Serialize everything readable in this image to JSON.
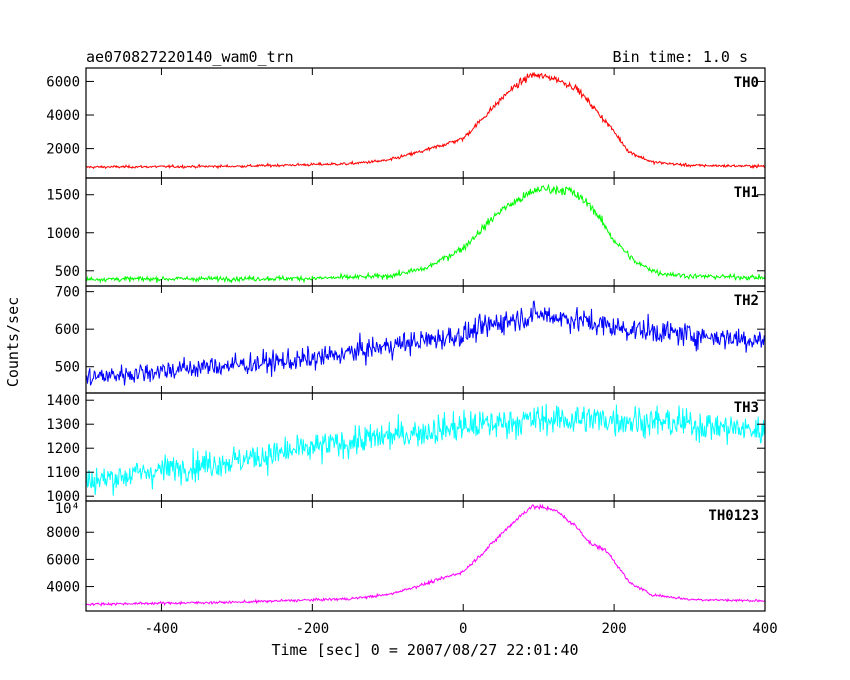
{
  "header": {
    "title": "ae070827220140_wam0_trn",
    "bin_time": "Bin time: 1.0 s"
  },
  "axes": {
    "xlabel": "Time [sec] 0 = 2007/08/27 22:01:40",
    "ylabel": "Counts/sec"
  },
  "chart_data": {
    "type": "line",
    "title": "ae070827220140_wam0_trn",
    "xlabel": "Time [sec] 0 = 2007/08/27 22:01:40",
    "ylabel": "Counts/sec",
    "xlim": [
      -500,
      400
    ],
    "xticks": [
      -400,
      -200,
      0,
      200,
      400
    ],
    "xtick_labels": [
      "-400",
      "-200",
      "0",
      "200",
      "400"
    ],
    "grid": false,
    "series": [
      {
        "name": "TH0",
        "color": "#ff0000",
        "ylim": [
          250,
          6800
        ],
        "yticks": [
          2000,
          4000,
          6000
        ],
        "ytick_labels": [
          "2000",
          "4000",
          "6000"
        ],
        "noise": 60,
        "x": [
          -500,
          -300,
          -150,
          -100,
          -50,
          0,
          30,
          60,
          90,
          120,
          150,
          170,
          185,
          195,
          220,
          250,
          300,
          400
        ],
        "values": [
          900,
          950,
          1100,
          1300,
          1900,
          2600,
          4000,
          5400,
          6400,
          6200,
          5600,
          4600,
          3800,
          3300,
          1800,
          1200,
          1000,
          950
        ]
      },
      {
        "name": "TH1",
        "color": "#00ff00",
        "ylim": [
          300,
          1720
        ],
        "yticks": [
          500,
          1000,
          1500
        ],
        "ytick_labels": [
          "500",
          "1000",
          "1500"
        ],
        "noise": 25,
        "x": [
          -500,
          -200,
          -100,
          -50,
          0,
          50,
          100,
          140,
          170,
          200,
          230,
          260,
          300,
          400
        ],
        "values": [
          390,
          400,
          430,
          530,
          800,
          1300,
          1580,
          1560,
          1350,
          900,
          600,
          470,
          430,
          410
        ]
      },
      {
        "name": "TH2",
        "color": "#0000ff",
        "ylim": [
          430,
          715
        ],
        "yticks": [
          500,
          600,
          700
        ],
        "ytick_labels": [
          "500",
          "600",
          "700"
        ],
        "noise": 22,
        "x": [
          -500,
          -400,
          -200,
          -100,
          0,
          50,
          100,
          150,
          200,
          300,
          400
        ],
        "values": [
          470,
          490,
          520,
          555,
          585,
          620,
          640,
          625,
          605,
          585,
          570
        ]
      },
      {
        "name": "TH3",
        "color": "#00ffff",
        "ylim": [
          980,
          1430
        ],
        "yticks": [
          1000,
          1100,
          1200,
          1300,
          1400
        ],
        "ytick_labels": [
          "1000",
          "1100",
          "1200",
          "1300",
          "1400"
        ],
        "noise": 45,
        "x": [
          -500,
          -400,
          -300,
          -200,
          -100,
          0,
          100,
          200,
          300,
          400
        ],
        "values": [
          1060,
          1110,
          1150,
          1200,
          1250,
          1290,
          1320,
          1320,
          1300,
          1270
        ]
      },
      {
        "name": "TH0123",
        "color": "#ff00ff",
        "ylim": [
          2200,
          10300
        ],
        "yticks": [
          4000,
          6000,
          8000
        ],
        "ytick_labels": [
          "4000",
          "6000",
          "8000"
        ],
        "top_label": "10⁴",
        "noise": 70,
        "x": [
          -500,
          -300,
          -150,
          -100,
          -50,
          0,
          30,
          60,
          90,
          120,
          150,
          170,
          185,
          195,
          220,
          250,
          300,
          400
        ],
        "values": [
          2700,
          2850,
          3100,
          3400,
          4200,
          5100,
          6700,
          8400,
          9900,
          9700,
          8400,
          7100,
          6800,
          6300,
          4300,
          3400,
          3050,
          2950
        ]
      }
    ]
  }
}
